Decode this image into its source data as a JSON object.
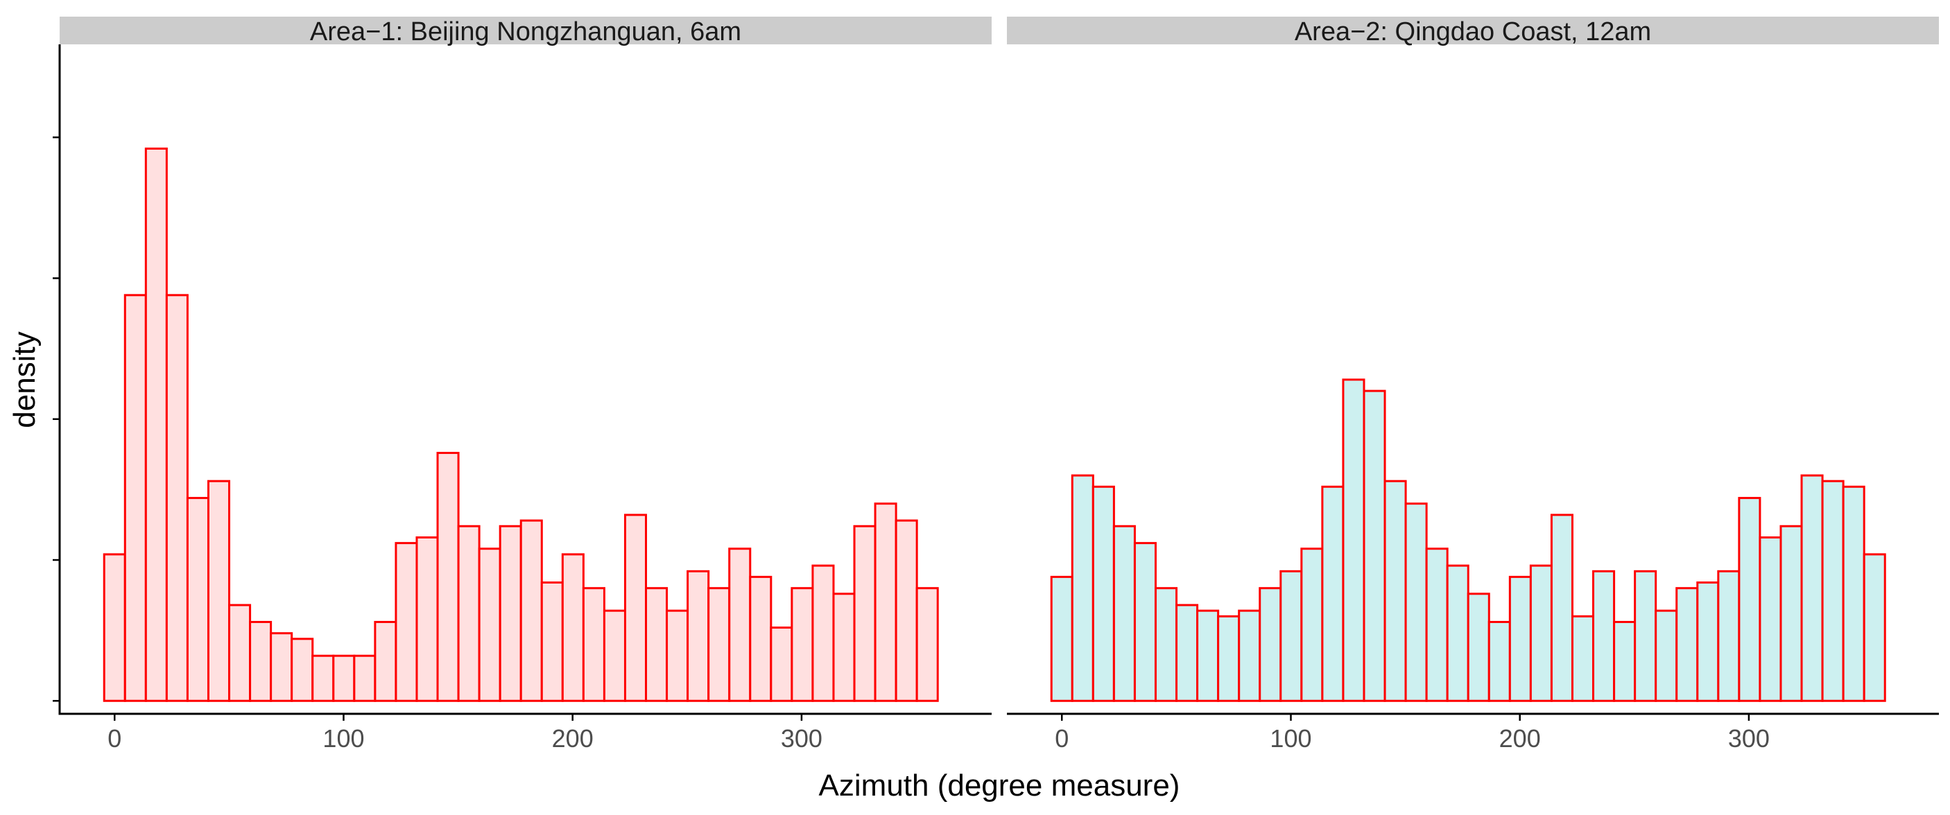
{
  "chart_data": {
    "type": "bar",
    "subtype": "histogram",
    "xlabel": "Azimuth (degree measure)",
    "ylabel": "density",
    "xlim": [
      -24,
      383
    ],
    "xticks": [
      0,
      100,
      200,
      300
    ],
    "ylim": [
      -0.00046,
      0.0233
    ],
    "ytick_values": [
      0,
      0.005,
      0.01,
      0.015,
      0.02
    ],
    "ytick_labels_shown": false,
    "bin_width": 9.1,
    "bin_start": -4.55,
    "colors": {
      "bar_outline": "#ff0000",
      "strip_background": "#cccccc",
      "axis": "#000000"
    },
    "panels": [
      {
        "strip_label": "Area−1: Beijing Nongzhanguan, 6am",
        "fill": "#ffe0e0",
        "bin_centers": [
          0,
          9.1,
          18.2,
          27.3,
          36.4,
          45.5,
          54.6,
          63.7,
          72.8,
          81.9,
          91,
          100.1,
          109.2,
          118.3,
          127.4,
          136.5,
          145.6,
          154.7,
          163.8,
          172.9,
          182,
          191.1,
          200.2,
          209.3,
          218.4,
          227.5,
          236.6,
          245.7,
          254.8,
          263.9,
          273,
          282.1,
          291.2,
          300.3,
          309.4,
          318.5,
          327.6,
          336.7,
          345.8,
          354.9
        ],
        "density": [
          0.0052,
          0.0144,
          0.0196,
          0.0144,
          0.0072,
          0.0078,
          0.0034,
          0.0028,
          0.0024,
          0.0022,
          0.0016,
          0.0016,
          0.0016,
          0.0028,
          0.0056,
          0.0058,
          0.0088,
          0.0062,
          0.0054,
          0.0062,
          0.0064,
          0.0042,
          0.0052,
          0.004,
          0.0032,
          0.0066,
          0.004,
          0.0032,
          0.0046,
          0.004,
          0.0054,
          0.0044,
          0.0026,
          0.004,
          0.0048,
          0.0038,
          0.0062,
          0.007,
          0.0064,
          0.004
        ]
      },
      {
        "strip_label": "Area−2: Qingdao Coast, 12am",
        "fill": "#cdf0f0",
        "bin_centers": [
          0,
          9.1,
          18.2,
          27.3,
          36.4,
          45.5,
          54.6,
          63.7,
          72.8,
          81.9,
          91,
          100.1,
          109.2,
          118.3,
          127.4,
          136.5,
          145.6,
          154.7,
          163.8,
          172.9,
          182,
          191.1,
          200.2,
          209.3,
          218.4,
          227.5,
          236.6,
          245.7,
          254.8,
          263.9,
          273,
          282.1,
          291.2,
          300.3,
          309.4,
          318.5,
          327.6,
          336.7,
          345.8,
          354.9
        ],
        "density": [
          0.0044,
          0.008,
          0.0076,
          0.0062,
          0.0056,
          0.004,
          0.0034,
          0.0032,
          0.003,
          0.0032,
          0.004,
          0.0046,
          0.0054,
          0.0076,
          0.0114,
          0.011,
          0.0078,
          0.007,
          0.0054,
          0.0048,
          0.0038,
          0.0028,
          0.0044,
          0.0048,
          0.0066,
          0.003,
          0.0046,
          0.0028,
          0.0046,
          0.0032,
          0.004,
          0.0042,
          0.0046,
          0.0072,
          0.0058,
          0.0062,
          0.008,
          0.0078,
          0.0076,
          0.0052
        ]
      }
    ]
  }
}
